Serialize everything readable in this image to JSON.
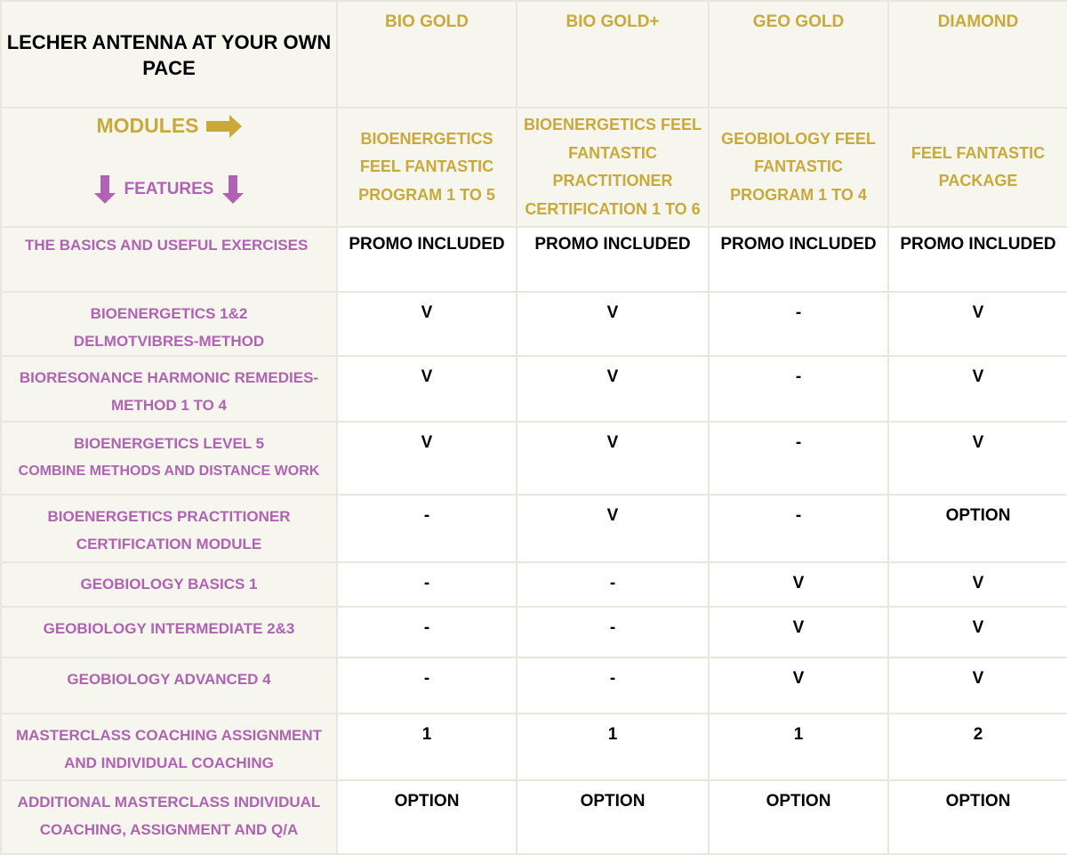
{
  "title": "LECHER ANTENNA AT YOUR OWN PACE",
  "modules_label": "MODULES",
  "features_label": "FEATURES",
  "colors": {
    "gold": "#c9a93a",
    "purple": "#b063b3",
    "background": "#f6f5ee"
  },
  "plans": [
    {
      "name": "BIO GOLD",
      "module": "BIOENERGETICS FEEL FANTASTIC PROGRAM 1 TO 5"
    },
    {
      "name": "BIO GOLD+",
      "module": "BIOENERGETICS FEEL FANTASTIC PRACTITIONER CERTIFICATION 1 TO 6"
    },
    {
      "name": "GEO GOLD",
      "module": "GEOBIOLOGY FEEL FANTASTIC PROGRAM 1 TO 4"
    },
    {
      "name": "DIAMOND",
      "module": "FEEL FANTASTIC PACKAGE"
    }
  ],
  "rows": [
    {
      "feature": "THE BASICS AND USEFUL EXERCISES",
      "values": [
        "PROMO INCLUDED",
        "PROMO INCLUDED",
        "PROMO INCLUDED",
        "PROMO INCLUDED"
      ]
    },
    {
      "feature": "BIOENERGETICS 1&2",
      "feature2": "DELMOTVIBRES-METHOD",
      "values": [
        "V",
        "V",
        "-",
        "V"
      ]
    },
    {
      "feature": "BIORESONANCE HARMONIC REMEDIES-",
      "feature2": "METHOD 1 TO 4",
      "values": [
        "V",
        "V",
        "-",
        "V"
      ]
    },
    {
      "feature": "BIOENERGETICS LEVEL 5",
      "feature2": "COMBINE METHODS AND DISTANCE WORK",
      "values": [
        "V",
        "V",
        "-",
        "V"
      ]
    },
    {
      "feature": "BIOENERGETICS PRACTITIONER",
      "feature2": "CERTIFICATION MODULE",
      "values": [
        "-",
        "V",
        "-",
        "OPTION"
      ]
    },
    {
      "feature": "GEOBIOLOGY BASICS 1",
      "values": [
        "-",
        "-",
        "V",
        "V"
      ]
    },
    {
      "feature": "GEOBIOLOGY INTERMEDIATE 2&3",
      "values": [
        "-",
        "-",
        "V",
        "V"
      ]
    },
    {
      "feature": "GEOBIOLOGY ADVANCED 4",
      "values": [
        "-",
        "-",
        "V",
        "V"
      ]
    },
    {
      "feature": "MASTERCLASS COACHING ASSIGNMENT",
      "feature2": "AND INDIVIDUAL COACHING",
      "values": [
        "1",
        "1",
        "1",
        "2"
      ]
    },
    {
      "feature": "ADDITIONAL MASTERCLASS INDIVIDUAL",
      "feature2": "COACHING, ASSIGNMENT AND Q/A",
      "values": [
        "OPTION",
        "OPTION",
        "OPTION",
        "OPTION"
      ]
    }
  ]
}
